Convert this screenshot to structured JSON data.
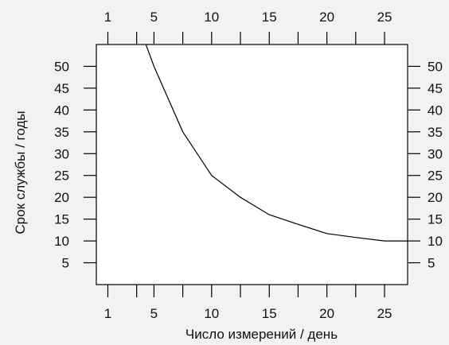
{
  "chart_data": {
    "type": "line",
    "title": "",
    "xlabel": "Число измерений / день",
    "ylabel": "Срок службы / годы",
    "xlim": [
      0,
      27
    ],
    "ylim": [
      0,
      55
    ],
    "x_ticks": [
      1,
      3.5,
      5,
      7.5,
      10,
      12.5,
      15,
      17.5,
      20,
      22.5,
      25
    ],
    "x_tick_labels": [
      "1",
      "5",
      "10",
      "15",
      "20",
      "25"
    ],
    "x_tick_label_values": [
      1,
      5,
      10,
      15,
      20,
      25
    ],
    "y_ticks": [
      5,
      10,
      15,
      20,
      25,
      30,
      35,
      40,
      45,
      50
    ],
    "y_tick_labels": [
      "5",
      "10",
      "15",
      "20",
      "25",
      "30",
      "35",
      "40",
      "45",
      "50"
    ],
    "series": [
      {
        "x": [
          4.3,
          5,
          7.5,
          10,
          12.5,
          15,
          17.5,
          20,
          22.5,
          25,
          27
        ],
        "y": [
          55,
          50,
          35,
          25,
          20,
          16,
          13.8,
          11.7,
          10.8,
          10,
          10
        ]
      }
    ],
    "grid": false,
    "line_color": "#000000",
    "background": "#f2f2f2",
    "plot_background": "#ffffff"
  }
}
